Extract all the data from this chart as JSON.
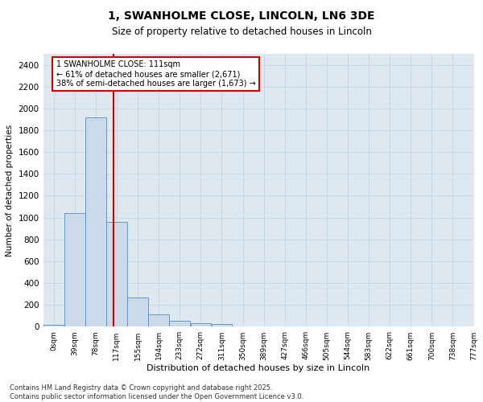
{
  "title": "1, SWANHOLME CLOSE, LINCOLN, LN6 3DE",
  "subtitle": "Size of property relative to detached houses in Lincoln",
  "xlabel": "Distribution of detached houses by size in Lincoln",
  "ylabel": "Number of detached properties",
  "bar_color": "#ccd9e8",
  "bar_edge_color": "#5b8db8",
  "grid_color": "#c8d4e0",
  "background_color": "#dde8f0",
  "vline_color": "#cc0000",
  "annotation_box_color": "#cc0000",
  "ylim": [
    0,
    2500
  ],
  "yticks": [
    0,
    200,
    400,
    600,
    800,
    1000,
    1200,
    1400,
    1600,
    1800,
    2000,
    2200,
    2400
  ],
  "bins": [
    "0sqm",
    "39sqm",
    "78sqm",
    "117sqm",
    "155sqm",
    "194sqm",
    "233sqm",
    "272sqm",
    "311sqm",
    "350sqm",
    "389sqm",
    "427sqm",
    "466sqm",
    "505sqm",
    "544sqm",
    "583sqm",
    "622sqm",
    "661sqm",
    "700sqm",
    "738sqm",
    "777sqm"
  ],
  "values": [
    20,
    1040,
    1920,
    960,
    270,
    115,
    50,
    35,
    25,
    5,
    2,
    1,
    0,
    0,
    0,
    0,
    0,
    0,
    0,
    0
  ],
  "annotation_title": "1 SWANHOLME CLOSE: 111sqm",
  "annotation_line2": "← 61% of detached houses are smaller (2,671)",
  "annotation_line3": "38% of semi-detached houses are larger (1,673) →",
  "footer_line1": "Contains HM Land Registry data © Crown copyright and database right 2025.",
  "footer_line2": "Contains public sector information licensed under the Open Government Licence v3.0.",
  "title_fontsize": 10,
  "subtitle_fontsize": 8.5,
  "ylabel_fontsize": 7.5,
  "xlabel_fontsize": 8,
  "ytick_fontsize": 7.5,
  "xtick_fontsize": 6.5,
  "annotation_fontsize": 7,
  "footer_fontsize": 6
}
